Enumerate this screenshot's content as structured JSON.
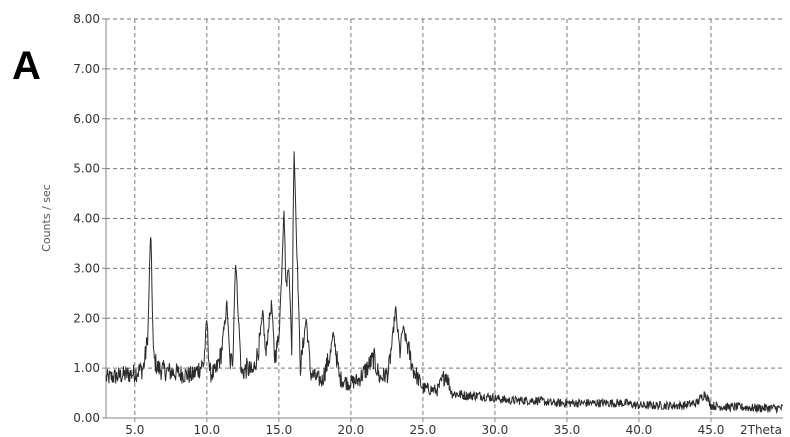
{
  "panel_label": "A",
  "chart_data": {
    "type": "line",
    "title": "",
    "xlabel": "2Theta",
    "ylabel": "Counts / sec",
    "xlim": [
      3.0,
      50.0
    ],
    "ylim": [
      0.0,
      8.0
    ],
    "xticks": [
      5,
      10,
      15,
      20,
      25,
      30,
      35,
      40,
      45
    ],
    "xtick_labels": [
      "5.0",
      "10.0",
      "15.0",
      "20.0",
      "25.0",
      "30.0",
      "35.0",
      "40.0",
      "45.0"
    ],
    "yticks": [
      0,
      1,
      2,
      3,
      4,
      5,
      6,
      7,
      8
    ],
    "ytick_labels": [
      "0.00",
      "1.00",
      "2.00",
      "3.00",
      "4.00",
      "5.00",
      "6.00",
      "7.00",
      "8.00"
    ],
    "grid": true,
    "line_color": "#2b2b2b",
    "series": [
      {
        "x": [
          3.0,
          4.0,
          5.0,
          5.6,
          5.9,
          6.1,
          6.3,
          6.6,
          7.0,
          8.0,
          9.0,
          9.8,
          10.0,
          10.2,
          10.6,
          11.0,
          11.4,
          11.6,
          11.8,
          12.0,
          12.2,
          12.4,
          12.8,
          13.2,
          13.6,
          13.9,
          14.1,
          14.3,
          14.5,
          14.7,
          15.0,
          15.2,
          15.35,
          15.5,
          15.7,
          15.9,
          16.05,
          16.2,
          16.5,
          16.9,
          17.2,
          17.6,
          18.0,
          18.6,
          18.8,
          19.2,
          19.8,
          20.5,
          21.0,
          21.6,
          22.0,
          22.6,
          22.9,
          23.1,
          23.4,
          23.6,
          23.9,
          24.3,
          25.0,
          26.0,
          26.6,
          27.0,
          28.0,
          29.0,
          30.0,
          31.0,
          32.0,
          33.0,
          34.0,
          35.0,
          36.0,
          37.0,
          38.0,
          39.0,
          40.0,
          41.0,
          42.0,
          43.0,
          44.0,
          44.6,
          45.0,
          46.0,
          47.0,
          48.0,
          49.0,
          50.0
        ],
        "y": [
          0.8,
          0.85,
          0.9,
          1.0,
          1.6,
          3.8,
          1.2,
          1.0,
          0.95,
          0.9,
          0.85,
          1.1,
          2.0,
          0.9,
          0.9,
          1.3,
          2.3,
          1.1,
          1.2,
          3.2,
          2.0,
          0.9,
          1.0,
          0.9,
          1.4,
          2.1,
          1.2,
          1.9,
          2.3,
          1.2,
          1.6,
          2.9,
          4.3,
          2.6,
          3.1,
          1.3,
          5.5,
          3.9,
          1.0,
          2.0,
          0.9,
          0.8,
          0.75,
          1.3,
          1.7,
          0.8,
          0.7,
          0.75,
          0.95,
          1.2,
          0.8,
          0.9,
          1.6,
          2.2,
          1.3,
          1.8,
          1.5,
          1.0,
          0.6,
          0.55,
          0.9,
          0.5,
          0.45,
          0.45,
          0.4,
          0.35,
          0.35,
          0.35,
          0.3,
          0.3,
          0.3,
          0.3,
          0.3,
          0.3,
          0.25,
          0.25,
          0.25,
          0.25,
          0.3,
          0.5,
          0.25,
          0.22,
          0.22,
          0.2,
          0.2,
          0.2
        ]
      }
    ]
  }
}
